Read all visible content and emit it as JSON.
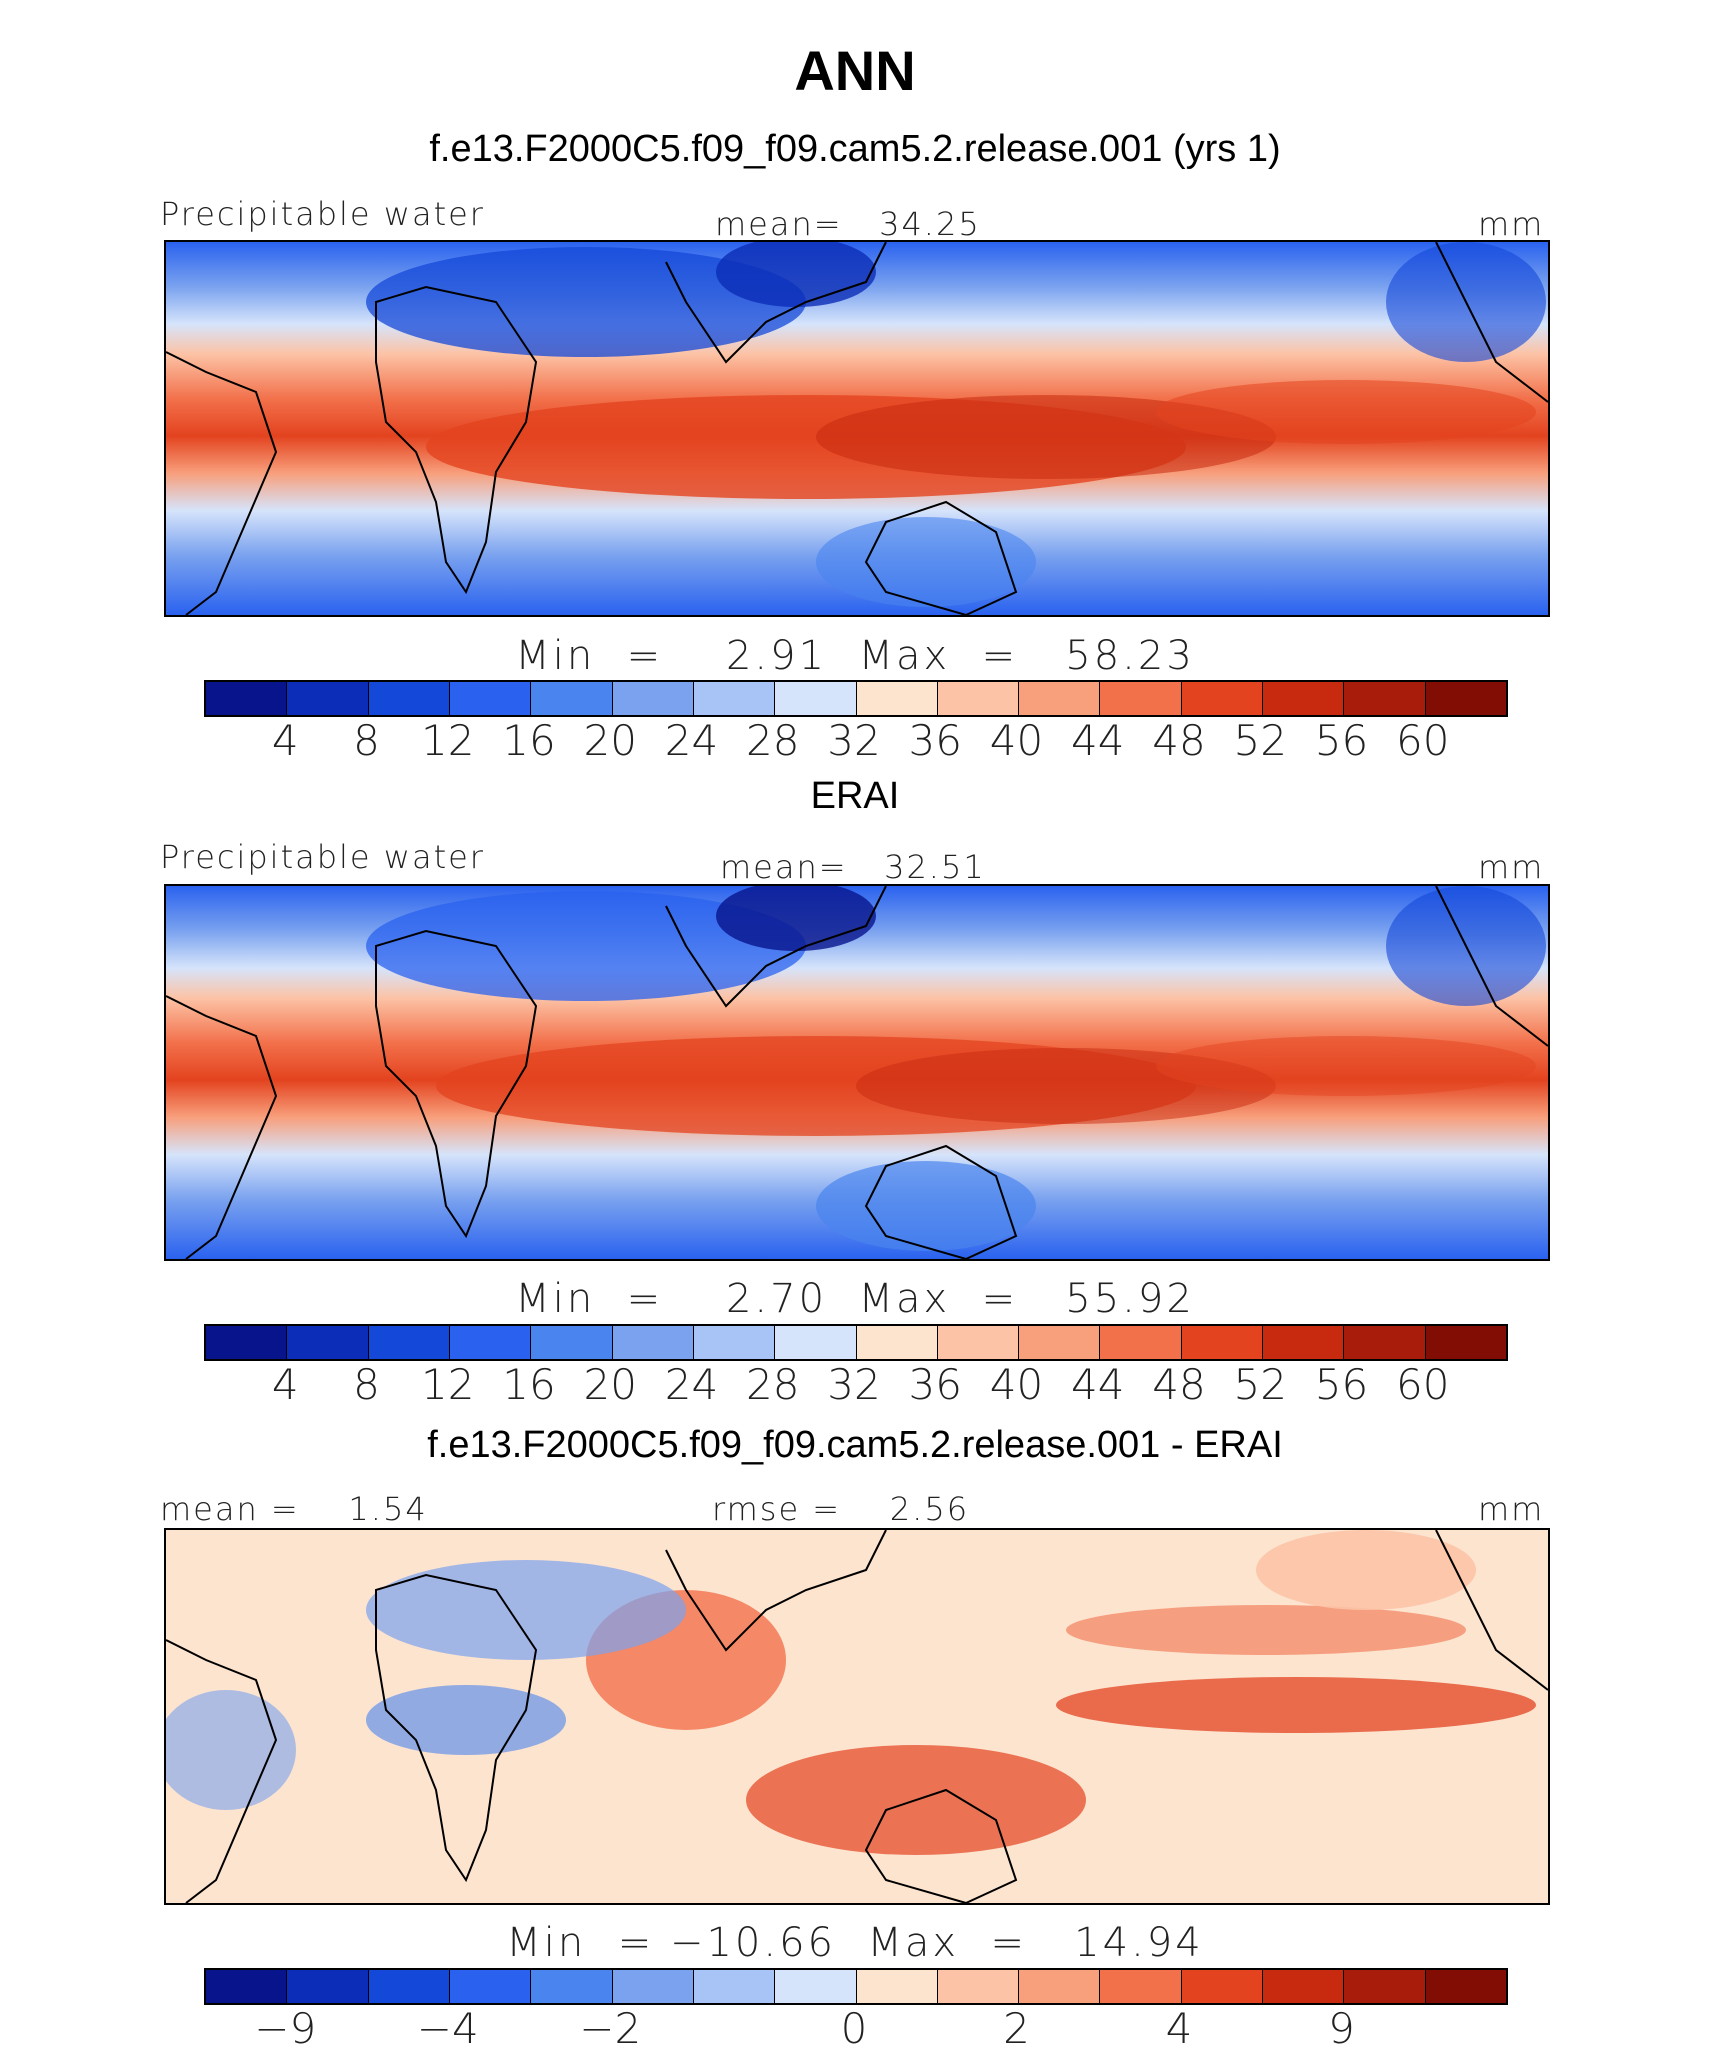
{
  "figure": {
    "title": "ANN"
  },
  "panels": [
    {
      "title": "f.e13.F2000C5.f09_f09.cam5.2.release.001 (yrs 1)",
      "left_label": "Precipitable water",
      "center_label": "mean=   34.25",
      "right_label": "mm",
      "stats": "Min  =    2.91  Max  =   58.23",
      "colorbar_ticks": [
        "4",
        "8",
        "12",
        "16",
        "20",
        "24",
        "28",
        "32",
        "36",
        "40",
        "44",
        "48",
        "52",
        "56",
        "60"
      ]
    },
    {
      "title": "ERAI",
      "left_label": "Precipitable water",
      "center_label": "mean=   32.51",
      "right_label": "mm",
      "stats": "Min  =    2.70  Max  =   55.92",
      "colorbar_ticks": [
        "4",
        "8",
        "12",
        "16",
        "20",
        "24",
        "28",
        "32",
        "36",
        "40",
        "44",
        "48",
        "52",
        "56",
        "60"
      ]
    },
    {
      "title": "f.e13.F2000C5.f09_f09.cam5.2.release.001 - ERAI",
      "left_label": "mean =    1.54",
      "center_label": "rmse =    2.56",
      "right_label": "mm",
      "stats": "Min  = −10.66  Max  =   14.94",
      "colorbar_ticks": [
        "−9",
        "−4",
        "−2",
        "0",
        "2",
        "4",
        "9"
      ]
    }
  ],
  "colors": {
    "abs_scale": [
      "#08148c",
      "#0b2db7",
      "#1448d8",
      "#2a62ef",
      "#4a84ee",
      "#7aa2ef",
      "#a8c3f5",
      "#d6e4fb",
      "#fde4cf",
      "#fcc3a6",
      "#f89f7c",
      "#f2714b",
      "#e3431f",
      "#c72a0f",
      "#a81c0b",
      "#820d05"
    ],
    "diff_scale": [
      "#08148c",
      "#0b2db7",
      "#1448d8",
      "#2a62ef",
      "#4a84ee",
      "#7aa2ef",
      "#a8c3f5",
      "#d6e4fb",
      "#fde4cf",
      "#fcc3a6",
      "#f89f7c",
      "#f2714b",
      "#e3431f",
      "#c72a0f",
      "#a81c0b",
      "#820d05"
    ]
  },
  "chart_data": [
    {
      "type": "heatmap",
      "title": "f.e13.F2000C5.f09_f09.cam5.2.release.001 (yrs 1)",
      "field": "Precipitable water",
      "units": "mm",
      "mean": 34.25,
      "min": 2.91,
      "max": 58.23,
      "colorbar_levels": [
        4,
        8,
        12,
        16,
        20,
        24,
        28,
        32,
        36,
        40,
        44,
        48,
        52,
        56,
        60
      ]
    },
    {
      "type": "heatmap",
      "title": "ERAI",
      "field": "Precipitable water",
      "units": "mm",
      "mean": 32.51,
      "min": 2.7,
      "max": 55.92,
      "colorbar_levels": [
        4,
        8,
        12,
        16,
        20,
        24,
        28,
        32,
        36,
        40,
        44,
        48,
        52,
        56,
        60
      ]
    },
    {
      "type": "heatmap",
      "title": "f.e13.F2000C5.f09_f09.cam5.2.release.001 - ERAI",
      "units": "mm",
      "mean": 1.54,
      "rmse": 2.56,
      "min": -10.66,
      "max": 14.94,
      "colorbar_levels": [
        -9,
        -4,
        -2,
        0,
        2,
        4,
        9
      ]
    }
  ]
}
